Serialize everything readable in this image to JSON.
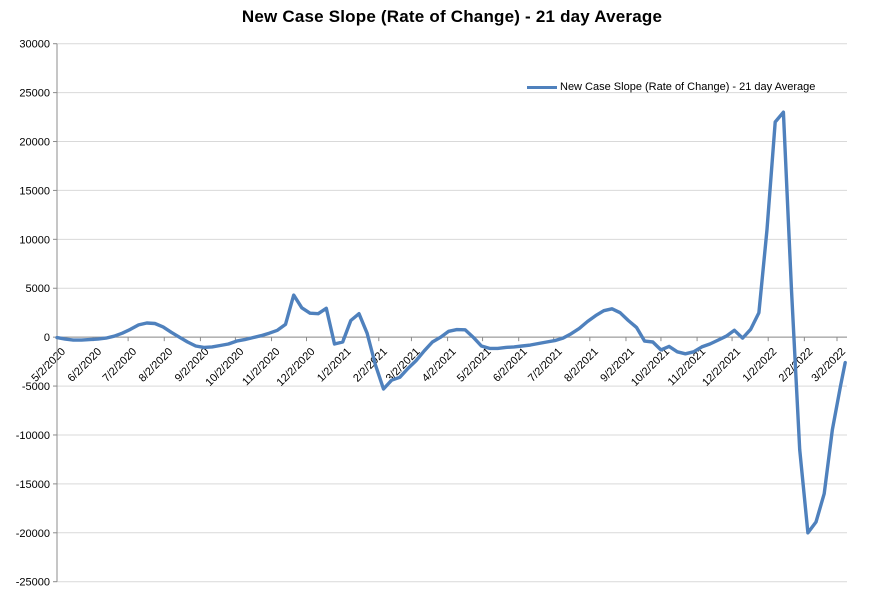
{
  "title": "New Case Slope (Rate of Change) - 21 day Average",
  "legend": {
    "label": "New Case Slope (Rate of Change) - 21 day Average",
    "position": "top-right"
  },
  "colors": {
    "series": "#4F81BD",
    "gridline": "#D9D9D9",
    "axis": "#8C8C8C",
    "text": "#000000",
    "background": "#FFFFFF"
  },
  "chart_data": {
    "type": "line",
    "title": "New Case Slope (Rate of Change) - 21 day Average",
    "xlabel": "",
    "ylabel": "",
    "grid": "horizontal",
    "legend_entries": [
      "New Case Slope (Rate of Change) - 21 day Average"
    ],
    "y_axis": {
      "min": -25000,
      "max": 30000,
      "step": 5000,
      "tick_labels": [
        "30000",
        "25000",
        "20000",
        "15000",
        "10000",
        "5000",
        "0",
        "-5000",
        "-10000",
        "-15000",
        "-20000",
        "-25000"
      ]
    },
    "x_axis": {
      "start_date": "2020-05-02",
      "tick_labels": [
        "5/2/2020",
        "6/2/2020",
        "7/2/2020",
        "8/2/2020",
        "9/2/2020",
        "10/2/2020",
        "11/2/2020",
        "12/2/2020",
        "1/2/2021",
        "2/2/2021",
        "3/2/2021",
        "4/2/2021",
        "5/2/2021",
        "6/2/2021",
        "7/2/2021",
        "8/2/2021",
        "9/2/2021",
        "10/2/2021",
        "11/2/2021",
        "12/2/2021",
        "1/2/2022",
        "2/2/2022",
        "3/2/2022"
      ]
    },
    "series": [
      {
        "name": "New Case Slope (Rate of Change) - 21 day Average",
        "color": "#4F81BD",
        "points": [
          [
            "2020-05-02",
            -50
          ],
          [
            "2020-05-09",
            -200
          ],
          [
            "2020-05-16",
            -300
          ],
          [
            "2020-05-23",
            -300
          ],
          [
            "2020-05-30",
            -250
          ],
          [
            "2020-06-06",
            -200
          ],
          [
            "2020-06-13",
            -100
          ],
          [
            "2020-06-20",
            100
          ],
          [
            "2020-06-27",
            400
          ],
          [
            "2020-07-04",
            800
          ],
          [
            "2020-07-11",
            1250
          ],
          [
            "2020-07-18",
            1450
          ],
          [
            "2020-07-25",
            1400
          ],
          [
            "2020-08-01",
            1050
          ],
          [
            "2020-08-08",
            500
          ],
          [
            "2020-08-15",
            0
          ],
          [
            "2020-08-22",
            -500
          ],
          [
            "2020-08-29",
            -900
          ],
          [
            "2020-09-05",
            -1050
          ],
          [
            "2020-09-12",
            -1000
          ],
          [
            "2020-09-19",
            -850
          ],
          [
            "2020-09-26",
            -700
          ],
          [
            "2020-10-03",
            -400
          ],
          [
            "2020-10-10",
            -250
          ],
          [
            "2020-10-17",
            -50
          ],
          [
            "2020-10-24",
            150
          ],
          [
            "2020-10-31",
            400
          ],
          [
            "2020-11-07",
            700
          ],
          [
            "2020-11-14",
            1300
          ],
          [
            "2020-11-21",
            4300
          ],
          [
            "2020-11-28",
            3000
          ],
          [
            "2020-12-05",
            2450
          ],
          [
            "2020-12-12",
            2400
          ],
          [
            "2020-12-19",
            2950
          ],
          [
            "2020-12-26",
            -700
          ],
          [
            "2021-01-02",
            -500
          ],
          [
            "2021-01-09",
            1700
          ],
          [
            "2021-01-16",
            2400
          ],
          [
            "2021-01-23",
            400
          ],
          [
            "2021-01-30",
            -2800
          ],
          [
            "2021-02-06",
            -5300
          ],
          [
            "2021-02-13",
            -4400
          ],
          [
            "2021-02-20",
            -4100
          ],
          [
            "2021-02-27",
            -3200
          ],
          [
            "2021-03-06",
            -2400
          ],
          [
            "2021-03-13",
            -1400
          ],
          [
            "2021-03-20",
            -500
          ],
          [
            "2021-03-27",
            0
          ],
          [
            "2021-04-03",
            600
          ],
          [
            "2021-04-10",
            770
          ],
          [
            "2021-04-17",
            750
          ],
          [
            "2021-04-24",
            0
          ],
          [
            "2021-05-01",
            -900
          ],
          [
            "2021-05-08",
            -1150
          ],
          [
            "2021-05-15",
            -1150
          ],
          [
            "2021-05-22",
            -1050
          ],
          [
            "2021-05-29",
            -1000
          ],
          [
            "2021-06-05",
            -900
          ],
          [
            "2021-06-12",
            -800
          ],
          [
            "2021-06-19",
            -650
          ],
          [
            "2021-06-26",
            -500
          ],
          [
            "2021-07-03",
            -350
          ],
          [
            "2021-07-10",
            -100
          ],
          [
            "2021-07-17",
            350
          ],
          [
            "2021-07-24",
            900
          ],
          [
            "2021-07-31",
            1600
          ],
          [
            "2021-08-07",
            2200
          ],
          [
            "2021-08-14",
            2700
          ],
          [
            "2021-08-21",
            2900
          ],
          [
            "2021-08-28",
            2500
          ],
          [
            "2021-09-04",
            1700
          ],
          [
            "2021-09-11",
            1000
          ],
          [
            "2021-09-18",
            -400
          ],
          [
            "2021-09-25",
            -500
          ],
          [
            "2021-10-02",
            -1300
          ],
          [
            "2021-10-09",
            -950
          ],
          [
            "2021-10-16",
            -1500
          ],
          [
            "2021-10-23",
            -1700
          ],
          [
            "2021-10-30",
            -1500
          ],
          [
            "2021-11-06",
            -1000
          ],
          [
            "2021-11-13",
            -700
          ],
          [
            "2021-11-20",
            -300
          ],
          [
            "2021-11-27",
            100
          ],
          [
            "2021-12-04",
            700
          ],
          [
            "2021-12-11",
            -100
          ],
          [
            "2021-12-18",
            800
          ],
          [
            "2021-12-25",
            2500
          ],
          [
            "2022-01-01",
            11000
          ],
          [
            "2022-01-08",
            22000
          ],
          [
            "2022-01-15",
            23000
          ],
          [
            "2022-01-22",
            4800
          ],
          [
            "2022-01-29",
            -11500
          ],
          [
            "2022-02-05",
            -20000
          ],
          [
            "2022-02-12",
            -18900
          ],
          [
            "2022-02-19",
            -16000
          ],
          [
            "2022-02-26",
            -9500
          ],
          [
            "2022-03-05",
            -5000
          ],
          [
            "2022-03-09",
            -2600
          ]
        ]
      }
    ]
  }
}
